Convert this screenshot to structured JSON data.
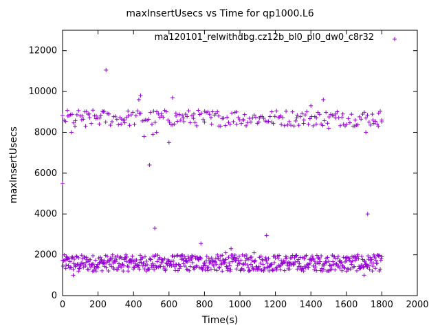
{
  "chart_data": {
    "type": "scatter",
    "title": "maxInsertUsecs vs Time for qp1000.L6",
    "xlabel": "Time(s)",
    "ylabel": "maxInsertUsecs",
    "xlim": [
      0,
      2000
    ],
    "ylim": [
      0,
      13000
    ],
    "xticks": [
      0,
      200,
      400,
      600,
      800,
      1000,
      1200,
      1400,
      1600,
      1800,
      2000
    ],
    "yticks": [
      0,
      2000,
      4000,
      6000,
      8000,
      10000,
      12000
    ],
    "legend": {
      "label": "ma120101_relwithdbg.cz12b_bl0_pl0_dw0_c8r32",
      "placement": "top-right"
    },
    "series": [
      {
        "name": "ma120101_relwithdbg.cz12b_bl0_pl0_dw0_c8r32",
        "color": "#9400d3",
        "marker": "+",
        "points": [
          [
            0,
            5500
          ],
          [
            20,
            1500
          ],
          [
            30,
            8800
          ],
          [
            50,
            8000
          ],
          [
            60,
            1000
          ],
          [
            70,
            8300
          ],
          [
            90,
            1200
          ],
          [
            110,
            8800
          ],
          [
            130,
            8300
          ],
          [
            150,
            8900
          ],
          [
            170,
            1200
          ],
          [
            190,
            8800
          ],
          [
            210,
            8700
          ],
          [
            230,
            9000
          ],
          [
            245,
            11050
          ],
          [
            260,
            8900
          ],
          [
            290,
            1300
          ],
          [
            330,
            8400
          ],
          [
            350,
            8600
          ],
          [
            370,
            8800
          ],
          [
            400,
            1400
          ],
          [
            430,
            9600
          ],
          [
            440,
            9800
          ],
          [
            460,
            7800
          ],
          [
            490,
            6400
          ],
          [
            510,
            7900
          ],
          [
            520,
            3300
          ],
          [
            530,
            8000
          ],
          [
            560,
            8800
          ],
          [
            600,
            7500
          ],
          [
            620,
            9700
          ],
          [
            640,
            8800
          ],
          [
            680,
            8700
          ],
          [
            700,
            1300
          ],
          [
            740,
            8900
          ],
          [
            780,
            2550
          ],
          [
            800,
            8500
          ],
          [
            840,
            8400
          ],
          [
            880,
            8800
          ],
          [
            900,
            1200
          ],
          [
            920,
            2100
          ],
          [
            950,
            2300
          ],
          [
            980,
            9000
          ],
          [
            1020,
            8600
          ],
          [
            1050,
            1200
          ],
          [
            1080,
            2100
          ],
          [
            1110,
            8700
          ],
          [
            1150,
            2950
          ],
          [
            1180,
            8500
          ],
          [
            1230,
            8800
          ],
          [
            1280,
            1300
          ],
          [
            1320,
            8700
          ],
          [
            1360,
            8600
          ],
          [
            1400,
            9300
          ],
          [
            1430,
            8400
          ],
          [
            1470,
            9600
          ],
          [
            1500,
            8200
          ],
          [
            1540,
            8700
          ],
          [
            1580,
            8900
          ],
          [
            1600,
            1200
          ],
          [
            1650,
            8600
          ],
          [
            1700,
            1000
          ],
          [
            1710,
            8000
          ],
          [
            1720,
            4000
          ],
          [
            1750,
            8600
          ],
          [
            1780,
            8300
          ],
          [
            1800,
            8600
          ]
        ]
      }
    ]
  }
}
